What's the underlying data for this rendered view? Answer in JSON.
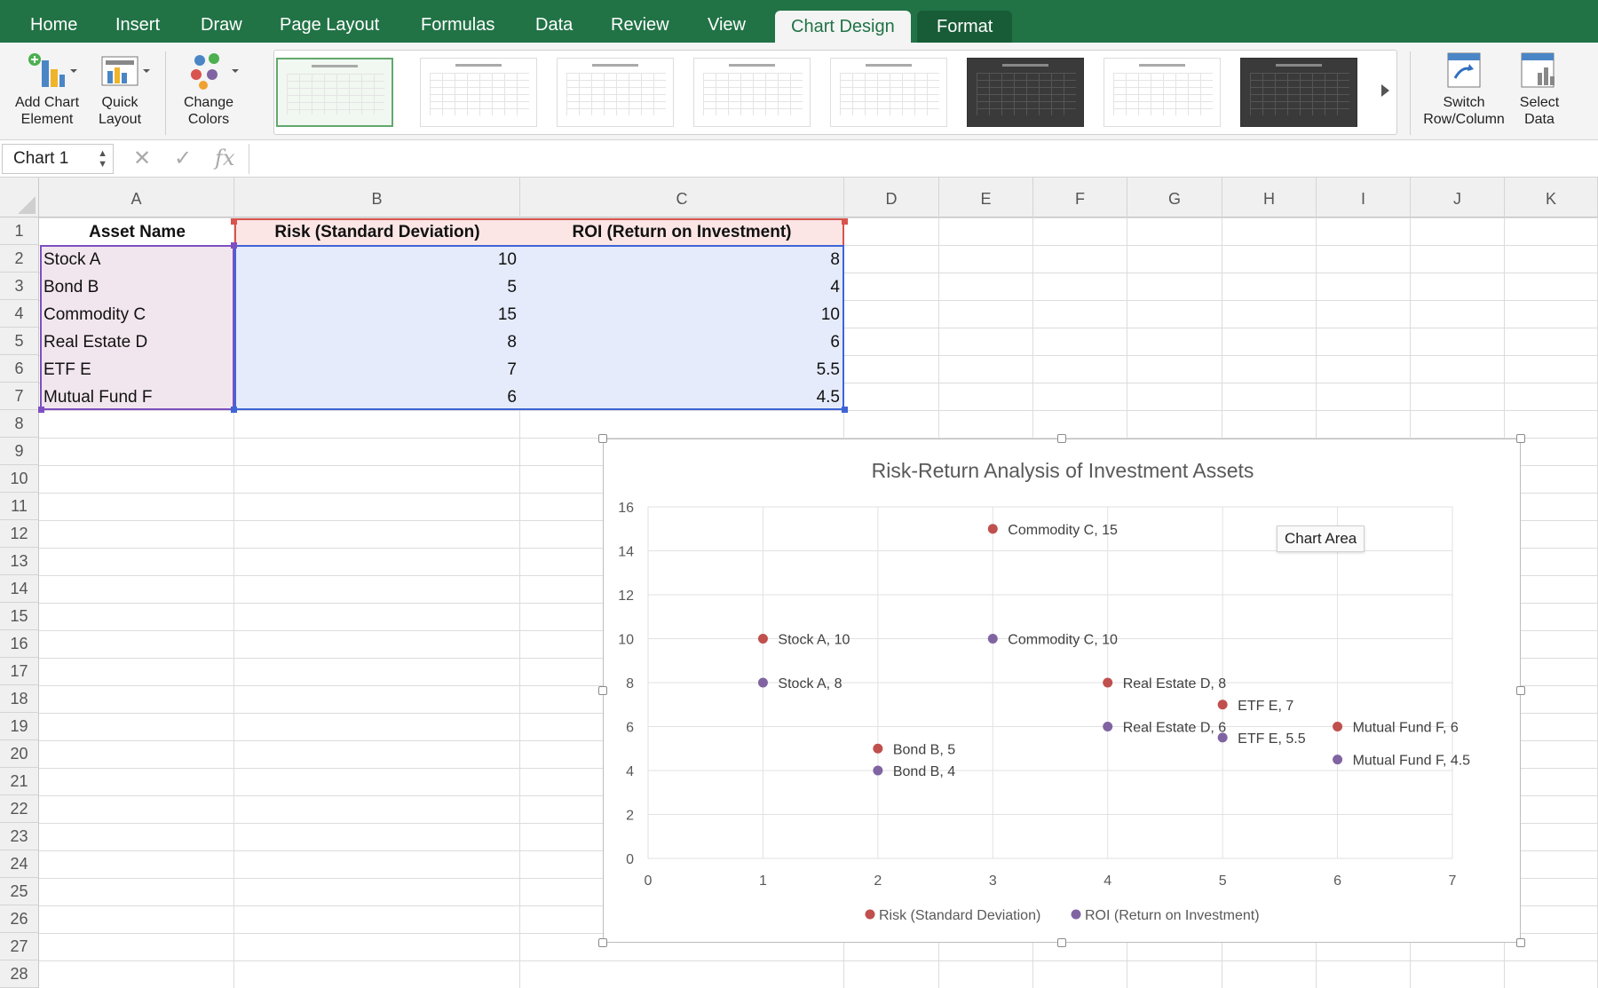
{
  "ribbon_tabs": [
    "Home",
    "Insert",
    "Draw",
    "Page Layout",
    "Formulas",
    "Data",
    "Review",
    "View",
    "Chart Design",
    "Format"
  ],
  "ribbon_buttons": {
    "add_chart_element": "Add Chart Element",
    "quick_layout": "Quick Layout",
    "change_colors": "Change Colors",
    "switch_row_column": "Switch Row/Column",
    "select_data": "Select Data"
  },
  "formula_bar": {
    "name_box": "Chart 1",
    "cancel": "✕",
    "enter": "✓",
    "fx": "fx"
  },
  "columns": [
    "A",
    "B",
    "C",
    "D",
    "E",
    "F",
    "G",
    "H",
    "I",
    "J",
    "K"
  ],
  "rows": [
    "1",
    "2",
    "3",
    "4",
    "5",
    "6",
    "7",
    "8",
    "9",
    "10",
    "11",
    "12",
    "13",
    "14",
    "15",
    "16",
    "17",
    "18",
    "19",
    "20",
    "21",
    "22",
    "23",
    "24",
    "25",
    "26",
    "27",
    "28"
  ],
  "table": {
    "headers": [
      "Asset Name",
      "Risk (Standard Deviation)",
      "ROI (Return on Investment)"
    ],
    "rows": [
      [
        "Stock A",
        "10",
        "8"
      ],
      [
        "Bond B",
        "5",
        "4"
      ],
      [
        "Commodity C",
        "15",
        "10"
      ],
      [
        "Real Estate D",
        "8",
        "6"
      ],
      [
        "ETF E",
        "7",
        "5.5"
      ],
      [
        "Mutual Fund F",
        "6",
        "4.5"
      ]
    ]
  },
  "tooltip": "Chart Area",
  "colors": {
    "ribbon": "#217346",
    "risk": "#c0504d",
    "roi": "#8064a2"
  },
  "chart_data": {
    "type": "scatter",
    "title": "Risk-Return Analysis of Investment Assets",
    "x": [
      1,
      2,
      3,
      4,
      5,
      6
    ],
    "xlim": [
      0,
      7
    ],
    "ylim": [
      0,
      16
    ],
    "x_ticks": [
      0,
      1,
      2,
      3,
      4,
      5,
      6,
      7
    ],
    "y_ticks": [
      0,
      2,
      4,
      6,
      8,
      10,
      12,
      14,
      16
    ],
    "grid": true,
    "legend": "bottom",
    "series": [
      {
        "name": "Risk (Standard Deviation)",
        "color": "#c0504d",
        "values": [
          10,
          5,
          15,
          8,
          7,
          6
        ],
        "labels": [
          "Stock A, 10",
          "Bond B, 5",
          "Commodity C, 15",
          "Real Estate D, 8",
          "ETF E, 7",
          "Mutual Fund F, 6"
        ]
      },
      {
        "name": "ROI (Return on Investment)",
        "color": "#8064a2",
        "values": [
          8,
          4,
          10,
          6,
          5.5,
          4.5
        ],
        "labels": [
          "Stock A, 8",
          "Bond B, 4",
          "Commodity C, 10",
          "Real Estate D, 6",
          "ETF E, 5.5",
          "Mutual Fund F, 4.5"
        ]
      }
    ]
  }
}
